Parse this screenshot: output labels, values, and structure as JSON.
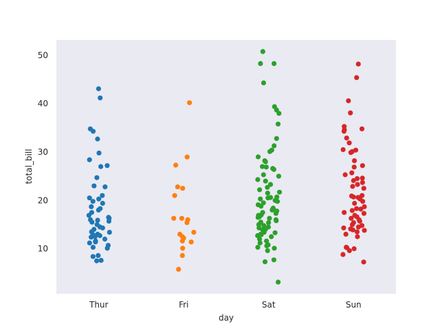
{
  "chart_data": {
    "type": "scatter",
    "subtype": "stripplot",
    "title": "",
    "xlabel": "day",
    "ylabel": "total_bill",
    "categories": [
      "Thur",
      "Fri",
      "Sat",
      "Sun"
    ],
    "ylim": [
      0.68,
      53.2
    ],
    "yticks": [
      10,
      20,
      30,
      40,
      50
    ],
    "grid": false,
    "background": "#eaeaf2",
    "series": [
      {
        "name": "Thur",
        "color": "#1f77b4",
        "values": [
          43.1,
          41.2,
          34.8,
          34.3,
          32.7,
          29.8,
          28.4,
          27.2,
          27.0,
          24.7,
          23.0,
          22.8,
          21.0,
          20.5,
          20.3,
          19.8,
          19.4,
          18.7,
          18.3,
          18.0,
          17.5,
          16.9,
          16.5,
          16.3,
          16.0,
          15.9,
          15.7,
          15.5,
          15.0,
          14.5,
          14.3,
          14.0,
          13.5,
          13.4,
          13.0,
          12.9,
          12.7,
          12.5,
          12.4,
          12.0,
          11.6,
          11.4,
          11.2,
          10.7,
          10.3,
          10.1,
          8.6,
          8.4,
          7.6,
          7.5
        ]
      },
      {
        "name": "Fri",
        "color": "#ff7f0e",
        "values": [
          40.2,
          28.97,
          27.3,
          22.8,
          22.5,
          21.0,
          16.3,
          16.3,
          16.0,
          15.4,
          13.4,
          13.0,
          12.5,
          12.2,
          11.6,
          11.4,
          10.1,
          8.6,
          5.75
        ]
      },
      {
        "name": "Sat",
        "color": "#2ca02c",
        "values": [
          50.8,
          48.3,
          48.3,
          44.3,
          39.4,
          38.7,
          38.0,
          35.8,
          32.8,
          31.3,
          30.4,
          30.1,
          29.0,
          28.2,
          28.0,
          27.0,
          26.9,
          26.6,
          26.4,
          25.3,
          25.0,
          24.3,
          24.0,
          23.3,
          22.7,
          22.2,
          21.7,
          21.5,
          20.7,
          20.6,
          20.5,
          20.3,
          20.0,
          19.8,
          19.5,
          19.1,
          18.8,
          18.4,
          18.3,
          18.0,
          17.8,
          17.5,
          17.3,
          17.0,
          16.9,
          16.6,
          16.5,
          16.3,
          16.0,
          15.8,
          15.5,
          15.4,
          15.0,
          14.8,
          14.5,
          14.3,
          14.0,
          13.9,
          13.4,
          13.3,
          13.0,
          12.9,
          12.7,
          12.5,
          12.0,
          11.6,
          11.2,
          10.8,
          10.6,
          10.3,
          10.1,
          9.6,
          7.7,
          7.3,
          3.1
        ]
      },
      {
        "name": "Sun",
        "color": "#d62728",
        "values": [
          48.2,
          45.4,
          40.6,
          38.1,
          35.3,
          34.8,
          34.6,
          34.3,
          32.9,
          31.9,
          30.5,
          30.4,
          30.1,
          29.9,
          28.2,
          27.2,
          26.9,
          25.7,
          25.3,
          24.6,
          24.5,
          24.1,
          23.7,
          23.3,
          22.9,
          22.5,
          21.0,
          20.9,
          20.7,
          20.6,
          20.3,
          19.8,
          19.4,
          18.7,
          18.3,
          18.2,
          17.9,
          17.5,
          17.3,
          16.9,
          16.6,
          16.3,
          16.0,
          15.7,
          15.4,
          15.0,
          14.8,
          14.5,
          14.3,
          14.1,
          13.9,
          13.8,
          13.5,
          13.0,
          12.5,
          10.3,
          10.2,
          10.0,
          9.6,
          8.8,
          7.25
        ]
      }
    ]
  }
}
